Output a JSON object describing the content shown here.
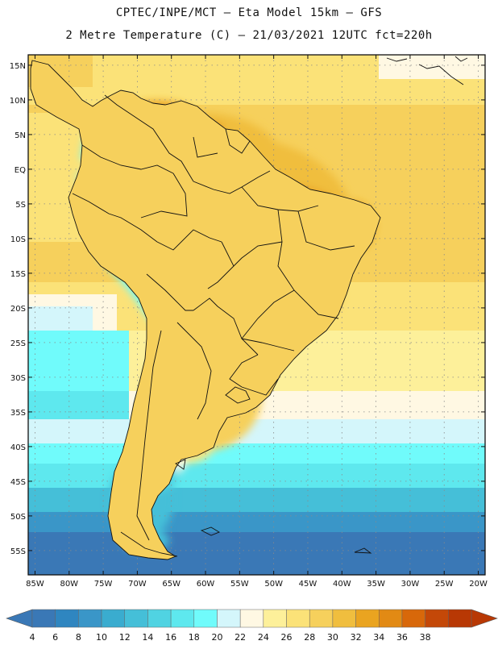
{
  "header": {
    "line1": "CPTEC/INPE/MCT –  Eta Model 15km – GFS",
    "line2": "2 Metre Temperature (C) – 21/03/2021 12UTC fct=220h"
  },
  "map": {
    "lon_range": [
      -86,
      -19
    ],
    "lat_range": [
      -58.5,
      16.5
    ],
    "lat_ticks": [
      {
        "lat": 15,
        "label": "15N"
      },
      {
        "lat": 10,
        "label": "10N"
      },
      {
        "lat": 5,
        "label": "5N"
      },
      {
        "lat": 0,
        "label": "EQ"
      },
      {
        "lat": -5,
        "label": "5S"
      },
      {
        "lat": -10,
        "label": "10S"
      },
      {
        "lat": -15,
        "label": "15S"
      },
      {
        "lat": -20,
        "label": "20S"
      },
      {
        "lat": -25,
        "label": "25S"
      },
      {
        "lat": -30,
        "label": "30S"
      },
      {
        "lat": -35,
        "label": "35S"
      },
      {
        "lat": -40,
        "label": "40S"
      },
      {
        "lat": -45,
        "label": "45S"
      },
      {
        "lat": -50,
        "label": "50S"
      },
      {
        "lat": -55,
        "label": "55S"
      }
    ],
    "lon_ticks": [
      {
        "lon": -85,
        "label": "85W"
      },
      {
        "lon": -80,
        "label": "80W"
      },
      {
        "lon": -75,
        "label": "75W"
      },
      {
        "lon": -70,
        "label": "70W"
      },
      {
        "lon": -65,
        "label": "65W"
      },
      {
        "lon": -60,
        "label": "60W"
      },
      {
        "lon": -55,
        "label": "55W"
      },
      {
        "lon": -50,
        "label": "50W"
      },
      {
        "lon": -45,
        "label": "45W"
      },
      {
        "lon": -40,
        "label": "40W"
      },
      {
        "lon": -35,
        "label": "35W"
      },
      {
        "lon": -30,
        "label": "30W"
      },
      {
        "lon": -25,
        "label": "25W"
      },
      {
        "lon": -20,
        "label": "20W"
      }
    ]
  },
  "colorbar": {
    "labels": [
      "4",
      "6",
      "8",
      "10",
      "12",
      "14",
      "16",
      "18",
      "20",
      "22",
      "24",
      "26",
      "28",
      "30",
      "32",
      "34",
      "36",
      "38"
    ],
    "colors": [
      "#3a78b6",
      "#2f86c0",
      "#3a96c8",
      "#3aaccf",
      "#45bfd8",
      "#50d3e2",
      "#5ee8ee",
      "#70fbfb",
      "#d4f6fb",
      "#fff8e3",
      "#fdf09a",
      "#fbe278",
      "#f6d05c",
      "#f0be3e",
      "#eaa420",
      "#e28a14",
      "#d8680a",
      "#c44808",
      "#b83804"
    ],
    "low_arrow_color": "#3a78b6",
    "high_arrow_color": "#b83804"
  }
}
